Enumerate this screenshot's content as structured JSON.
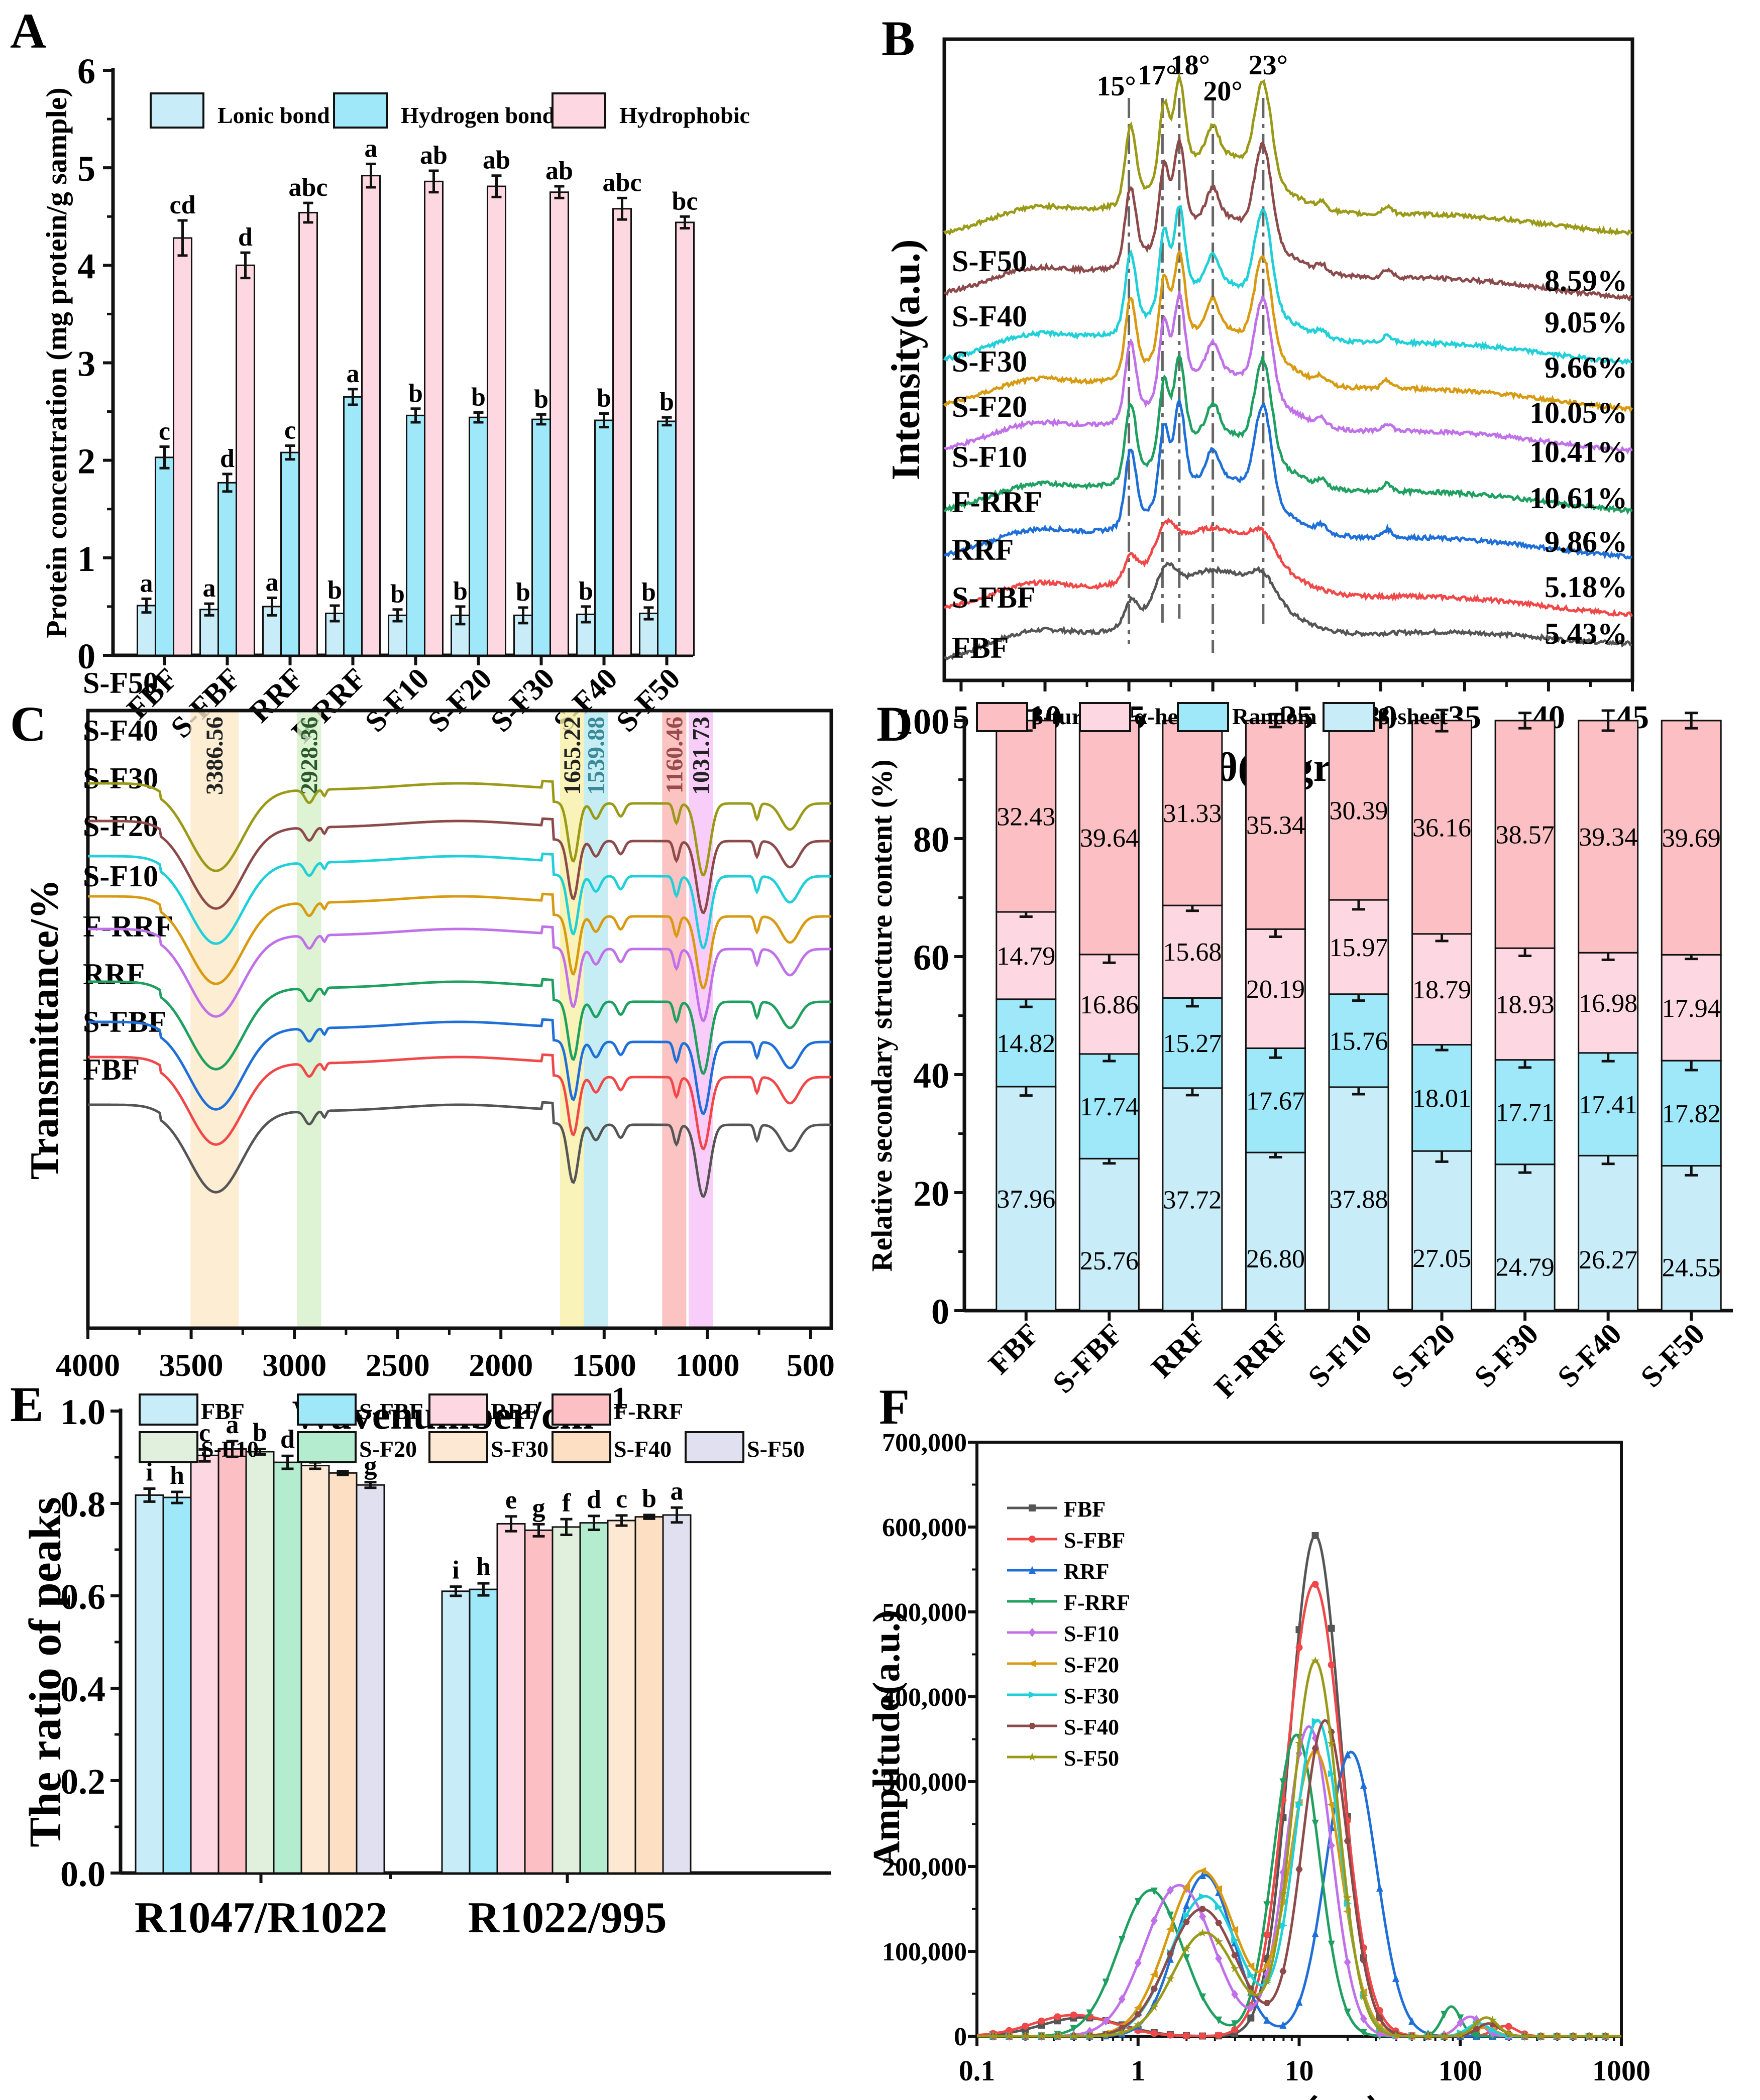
{
  "chart_data": [
    {
      "panel": "A",
      "type": "bar",
      "ylabel": "Protein concentration (mg protein/g sample)",
      "ylim": [
        0,
        6
      ],
      "yticks": [
        0,
        1,
        2,
        3,
        4,
        5,
        6
      ],
      "categories": [
        "FBF",
        "S-FBF",
        "RRF",
        "F-RRF",
        "S-F10",
        "S-F20",
        "S-F30",
        "S-F40",
        "S-F50"
      ],
      "legend_position": "top",
      "series": [
        {
          "name": "Lonic bond",
          "color": "#c8ecf8",
          "values": [
            0.51,
            0.47,
            0.5,
            0.43,
            0.41,
            0.41,
            0.41,
            0.42,
            0.43
          ],
          "errors": [
            0.07,
            0.06,
            0.09,
            0.08,
            0.06,
            0.09,
            0.08,
            0.08,
            0.06
          ],
          "letters": [
            "a",
            "a",
            "a",
            "b",
            "b",
            "b",
            "b",
            "b",
            "b"
          ]
        },
        {
          "name": "Hydrogen bond",
          "color": "#9fe8f9",
          "values": [
            2.03,
            1.77,
            2.08,
            2.65,
            2.46,
            2.44,
            2.42,
            2.41,
            2.4
          ],
          "errors": [
            0.11,
            0.09,
            0.07,
            0.08,
            0.07,
            0.05,
            0.05,
            0.07,
            0.04
          ],
          "letters": [
            "c",
            "d",
            "c",
            "a",
            "b",
            "b",
            "b",
            "b",
            "b"
          ]
        },
        {
          "name": "Hydrophobic",
          "color": "#fdd7e2",
          "values": [
            4.28,
            4.0,
            4.54,
            4.92,
            4.86,
            4.81,
            4.75,
            4.58,
            4.44
          ],
          "errors": [
            0.18,
            0.13,
            0.1,
            0.12,
            0.11,
            0.11,
            0.06,
            0.11,
            0.06
          ],
          "letters": [
            "cd",
            "d",
            "abc",
            "a",
            "ab",
            "ab",
            "ab",
            "abc",
            "bc"
          ]
        }
      ]
    },
    {
      "panel": "B",
      "type": "line",
      "xlabel": "2θ(degree)",
      "ylabel": "Intensity(a.u.)",
      "xlim": [
        4,
        45
      ],
      "xticks": [
        5,
        10,
        15,
        20,
        25,
        30,
        35,
        40,
        45
      ],
      "peak_markers": [
        {
          "angle": 15,
          "label": "15°"
        },
        {
          "angle": 17,
          "label": "17°"
        },
        {
          "angle": 18,
          "label": "18°"
        },
        {
          "angle": 20,
          "label": "20°"
        },
        {
          "angle": 23,
          "label": "23°"
        }
      ],
      "series": [
        {
          "name": "FBF",
          "color": "#555555",
          "crystallinity": "5.43%",
          "profile": "amorphous"
        },
        {
          "name": "S-FBF",
          "color": "#f04848",
          "crystallinity": "5.18%",
          "profile": "amorphous"
        },
        {
          "name": "RRF",
          "color": "#1f6fd8",
          "crystallinity": "9.86%",
          "profile": "crystalline"
        },
        {
          "name": "F-RRF",
          "color": "#1fa060",
          "crystallinity": "10.61%",
          "profile": "crystalline"
        },
        {
          "name": "S-F10",
          "color": "#c070e8",
          "crystallinity": "10.41%",
          "profile": "crystalline"
        },
        {
          "name": "S-F20",
          "color": "#d89a10",
          "crystallinity": "10.05%",
          "profile": "crystalline"
        },
        {
          "name": "S-F30",
          "color": "#20d0d8",
          "crystallinity": "9.66%",
          "profile": "crystalline"
        },
        {
          "name": "S-F40",
          "color": "#8c4a4a",
          "crystallinity": "9.05%",
          "profile": "crystalline"
        },
        {
          "name": "S-F50",
          "color": "#9a9a18",
          "crystallinity": "8.59%",
          "profile": "crystalline"
        }
      ]
    },
    {
      "panel": "C",
      "type": "line",
      "xlabel": "Wavenumber/cm",
      "xlabel_sup": "−1",
      "ylabel": "Transmittance/%",
      "xlim": [
        4000,
        400
      ],
      "xticks": [
        4000,
        3500,
        3000,
        2500,
        2000,
        1500,
        1000,
        500
      ],
      "bands": [
        {
          "center": 3386.56,
          "label": "3386.56",
          "color": "#fde8c8",
          "label_color": "#222222"
        },
        {
          "center": 2928.36,
          "label": "2928.36",
          "color": "#d4f0c8",
          "label_color": "#2a5a2a"
        },
        {
          "center": 1655.22,
          "label": "1655.22",
          "color": "#f8f0a8",
          "label_color": "#222222"
        },
        {
          "center": 1539.88,
          "label": "1539.88",
          "color": "#b8e8f0",
          "label_color": "#3a8a9a"
        },
        {
          "center": 1160.46,
          "label": "1160.46",
          "color": "#fbb4b4",
          "label_color": "#9a4a4a"
        },
        {
          "center": 1031.73,
          "label": "1031.73",
          "color": "#f8c0f8",
          "label_color": "#222222"
        }
      ],
      "series": [
        {
          "name": "FBF",
          "color": "#555555"
        },
        {
          "name": "S-FBF",
          "color": "#f04848"
        },
        {
          "name": "RRF",
          "color": "#1f6fd8"
        },
        {
          "name": "F-RRF",
          "color": "#1fa060"
        },
        {
          "name": "S-F10",
          "color": "#c070e8"
        },
        {
          "name": "S-F20",
          "color": "#d89a10"
        },
        {
          "name": "S-F30",
          "color": "#20d0d8"
        },
        {
          "name": "S-F40",
          "color": "#8c4a4a"
        },
        {
          "name": "S-F50",
          "color": "#9a9a18"
        }
      ]
    },
    {
      "panel": "D",
      "type": "bar",
      "stacked": true,
      "ylabel": "Relative secondary structure content (%)",
      "ylim": [
        0,
        100
      ],
      "yticks": [
        0,
        20,
        40,
        60,
        80,
        100
      ],
      "categories": [
        "FBF",
        "S-FBF",
        "RRF",
        "F-RRF",
        "S-F10",
        "S-F20",
        "S-F30",
        "S-F40",
        "S-F50"
      ],
      "legend_order": [
        "β-turn",
        "α-helix",
        "Random coil",
        "β-sheet"
      ],
      "series": [
        {
          "name": "β-sheet",
          "color": "#c8ecf8",
          "values": [
            37.96,
            25.76,
            37.72,
            26.8,
            37.88,
            27.05,
            24.79,
            26.27,
            24.55
          ],
          "errors": [
            1.5,
            0.8,
            1.2,
            0.8,
            1.2,
            1.8,
            1.4,
            1.4,
            1.6
          ]
        },
        {
          "name": "Random coil",
          "color": "#9fe8f9",
          "values": [
            14.82,
            17.74,
            15.27,
            17.67,
            15.76,
            18.01,
            17.71,
            17.41,
            17.82
          ],
          "errors": [
            1.3,
            1.2,
            1.4,
            1.6,
            1.1,
            0.9,
            1.3,
            1.4,
            1.6
          ]
        },
        {
          "name": "α-helix",
          "color": "#fdd7e2",
          "values": [
            14.79,
            16.86,
            15.68,
            20.19,
            15.97,
            18.79,
            18.93,
            16.98,
            17.94
          ],
          "errors": [
            0.8,
            1.4,
            0.9,
            1.3,
            1.6,
            1.2,
            1.3,
            1.2,
            0.7
          ]
        },
        {
          "name": "β-turn",
          "color": "#fcc0c4",
          "values": [
            32.43,
            39.64,
            31.33,
            35.34,
            30.39,
            36.16,
            38.57,
            39.34,
            39.69
          ],
          "errors": [
            1.7,
            1.2,
            0.8,
            1.1,
            1.5,
            1.8,
            1.3,
            1.7,
            1.3
          ]
        }
      ]
    },
    {
      "panel": "E",
      "type": "bar",
      "ylabel": "The ratio of peaks",
      "ylim": [
        0,
        1.0
      ],
      "yticks": [
        0.0,
        0.2,
        0.4,
        0.6,
        0.8,
        1.0
      ],
      "categories": [
        "R1047/R1022",
        "R1022/995"
      ],
      "legend_position": "top",
      "series": [
        {
          "name": "FBF",
          "color": "#c8ecf8",
          "values": [
            0.818,
            0.61
          ],
          "errors": [
            0.014,
            0.01
          ],
          "letters": [
            "i",
            "i"
          ]
        },
        {
          "name": "S-FBF",
          "color": "#9fe8f9",
          "values": [
            0.813,
            0.614
          ],
          "errors": [
            0.012,
            0.013
          ],
          "letters": [
            "h",
            "h"
          ]
        },
        {
          "name": "RRF",
          "color": "#fdd7e2",
          "values": [
            0.904,
            0.756
          ],
          "errors": [
            0.013,
            0.016
          ],
          "letters": [
            "c",
            "e"
          ]
        },
        {
          "name": "F-RRF",
          "color": "#fcc0c4",
          "values": [
            0.918,
            0.742
          ],
          "errors": [
            0.017,
            0.013
          ],
          "letters": [
            "a",
            "g"
          ]
        },
        {
          "name": "S-F10",
          "color": "#e0f0dc",
          "values": [
            0.912,
            0.749
          ],
          "errors": [
            0.006,
            0.017
          ],
          "letters": [
            "b",
            "f"
          ]
        },
        {
          "name": "S-F20",
          "color": "#b4ecd0",
          "values": [
            0.889,
            0.758
          ],
          "errors": [
            0.014,
            0.015
          ],
          "letters": [
            "d",
            "d"
          ]
        },
        {
          "name": "S-F30",
          "color": "#fde8d4",
          "values": [
            0.882,
            0.763
          ],
          "errors": [
            0.007,
            0.011
          ],
          "letters": [
            "e",
            "c"
          ]
        },
        {
          "name": "S-F40",
          "color": "#fde0c4",
          "values": [
            0.866,
            0.771
          ],
          "errors": [
            0.004,
            0.004
          ],
          "letters": [
            "f",
            "b"
          ]
        },
        {
          "name": "S-F50",
          "color": "#e0e0f0",
          "values": [
            0.84,
            0.775
          ],
          "errors": [
            0.006,
            0.016
          ],
          "letters": [
            "g",
            "a"
          ]
        }
      ]
    },
    {
      "panel": "F",
      "type": "line",
      "xlabel": "Time（ms）",
      "ylabel": "Amplitude(a.u.)",
      "xscale": "log",
      "xlim": [
        0.1,
        1000
      ],
      "xticks": [
        0.1,
        1,
        10,
        100,
        1000
      ],
      "xtick_labels": [
        "0.1",
        "1",
        "10",
        "100",
        "1000"
      ],
      "ylim": [
        0,
        700000
      ],
      "yticks": [
        0,
        100000,
        200000,
        300000,
        400000,
        500000,
        600000,
        700000
      ],
      "ytick_labels": [
        "0",
        "100,000",
        "200,000",
        "300,000",
        "400,000",
        "500,000",
        "600,000",
        "700,000"
      ],
      "legend_position": "top-left",
      "series": [
        {
          "name": "FBF",
          "color": "#555555",
          "marker": "square",
          "components": [
            [
              0.45,
              22000,
              0.35
            ],
            [
              12.6,
              590000,
              0.22
            ]
          ]
        },
        {
          "name": "S-FBF",
          "color": "#f04848",
          "marker": "circle",
          "components": [
            [
              0.4,
              25000,
              0.35
            ],
            [
              12.4,
              533000,
              0.24
            ],
            [
              190,
              12000,
              0.1
            ]
          ]
        },
        {
          "name": "RRF",
          "color": "#1f6fd8",
          "marker": "triangle-up",
          "components": [
            [
              2.6,
              190000,
              0.25
            ],
            [
              21,
              335000,
              0.22
            ]
          ]
        },
        {
          "name": "F-RRF",
          "color": "#1fa060",
          "marker": "triangle-down",
          "components": [
            [
              1.2,
              172000,
              0.28
            ],
            [
              9.6,
              355000,
              0.2
            ],
            [
              88,
              35000,
              0.08
            ]
          ]
        },
        {
          "name": "S-F10",
          "color": "#c070e8",
          "marker": "diamond",
          "components": [
            [
              1.8,
              178000,
              0.3
            ],
            [
              11.5,
              365000,
              0.2
            ],
            [
              115,
              23000,
              0.1
            ]
          ]
        },
        {
          "name": "S-F20",
          "color": "#d89a10",
          "marker": "triangle-left",
          "components": [
            [
              2.5,
              195000,
              0.3
            ],
            [
              12.6,
              335000,
              0.22
            ],
            [
              140,
              10000,
              0.1
            ]
          ]
        },
        {
          "name": "S-F30",
          "color": "#20d0d8",
          "marker": "triangle-right",
          "components": [
            [
              2.6,
              165000,
              0.3
            ],
            [
              13,
              372000,
              0.2
            ],
            [
              130,
              15000,
              0.1
            ]
          ]
        },
        {
          "name": "S-F40",
          "color": "#8c4a4a",
          "marker": "hexagon",
          "components": [
            [
              2.5,
              150000,
              0.3
            ],
            [
              14.5,
              372000,
              0.2
            ],
            [
              150,
              15000,
              0.1
            ]
          ]
        },
        {
          "name": "S-F50",
          "color": "#9a9a18",
          "marker": "star",
          "components": [
            [
              2.6,
              122000,
              0.28
            ],
            [
              12.6,
              442000,
              0.2
            ],
            [
              145,
              22000,
              0.1
            ]
          ]
        }
      ]
    }
  ],
  "panels": {
    "A": {
      "label": "A"
    },
    "B": {
      "label": "B"
    },
    "C": {
      "label": "C"
    },
    "D": {
      "label": "D"
    },
    "E": {
      "label": "E"
    },
    "F": {
      "label": "F"
    }
  }
}
